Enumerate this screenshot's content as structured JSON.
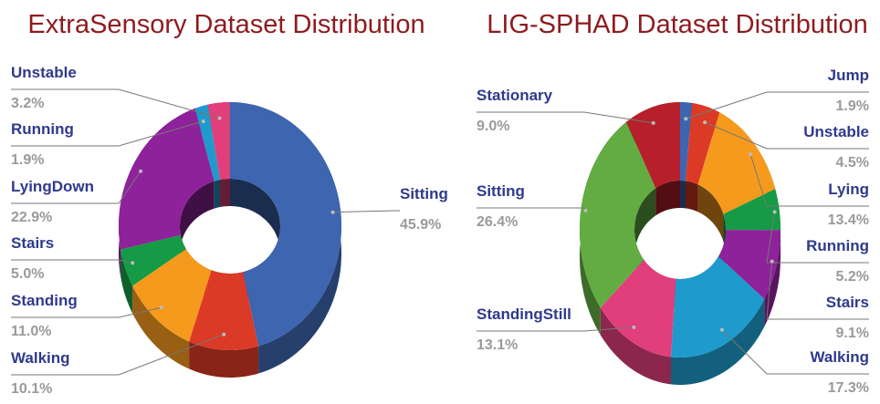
{
  "chart_data": [
    {
      "type": "pie",
      "title": "ExtraSensory Dataset Distribution",
      "categories": [
        "Sitting",
        "Walking",
        "Standing",
        "Stairs",
        "LyingDown",
        "Running",
        "Unstable"
      ],
      "values": [
        45.9,
        10.1,
        11.0,
        5.0,
        22.9,
        1.9,
        3.2
      ],
      "value_labels": [
        "45.9%",
        "10.1%",
        "11.0%",
        "5.0%",
        "22.9%",
        "1.9%",
        "3.2%"
      ],
      "colors": [
        "#3d65b0",
        "#db3a26",
        "#f69a1d",
        "#159a46",
        "#8e229a",
        "#1e9bcc",
        "#e03f7b"
      ]
    },
    {
      "type": "pie",
      "title": "LIG-SPHAD Dataset Distribution",
      "categories": [
        "Jump",
        "Unstable",
        "Lying",
        "Running",
        "Stairs",
        "Walking",
        "StandingStill",
        "Sitting",
        "Stationary"
      ],
      "values": [
        1.9,
        4.5,
        13.4,
        5.2,
        9.1,
        17.3,
        13.1,
        26.4,
        9.0
      ],
      "value_labels": [
        "1.9%",
        "4.5%",
        "13.4%",
        "5.2%",
        "9.1%",
        "17.3%",
        "13.1%",
        "26.4%",
        "9.0%"
      ],
      "colors": [
        "#3d65b0",
        "#db3a26",
        "#f69a1d",
        "#159a46",
        "#8e229a",
        "#1e9bcc",
        "#e03f7b",
        "#62ac42",
        "#b7202a"
      ]
    }
  ]
}
